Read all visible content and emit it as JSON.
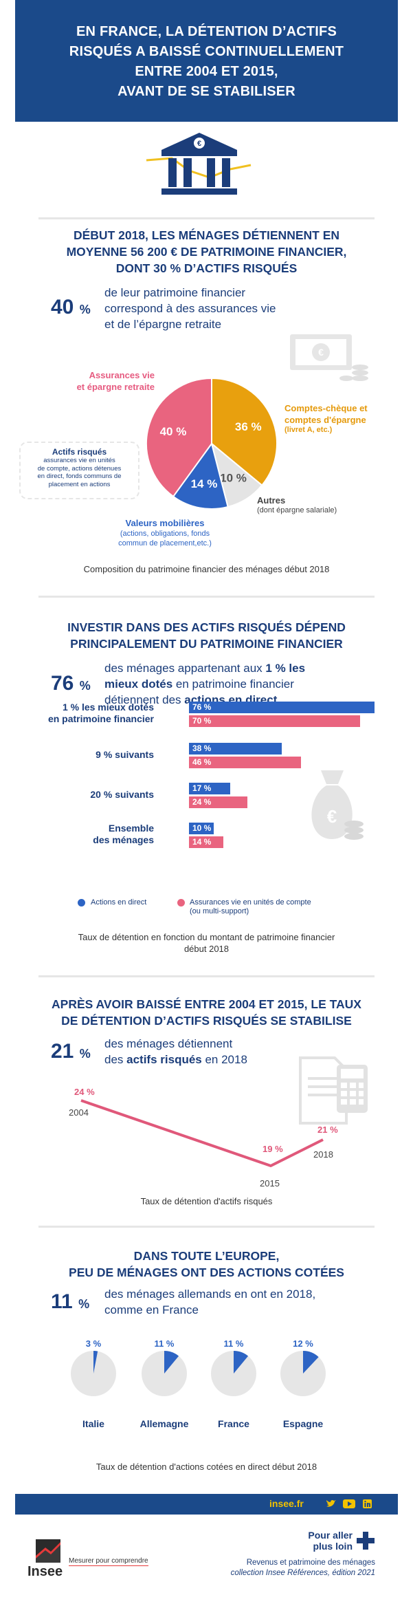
{
  "header": {
    "title_lines": [
      "EN FRANCE, LA DÉTENTION D’ACTIFS",
      "RISQUÉS A BAISSÉ CONTINUELLEMENT",
      "ENTRE 2004 ET 2015,",
      "AVANT DE SE STABILISER"
    ]
  },
  "section1": {
    "title_lines": [
      "DÉBUT 2018, LES MÉNAGES DÉTIENNENT EN",
      "MOYENNE 56 200 € DE PATRIMOINE FINANCIER,",
      "DONT 30 % D’ACTIFS RISQUÉS"
    ],
    "stat_value": "40",
    "stat_unit": "%",
    "stat_text_lines": [
      "de leur patrimoine financier",
      "correspond à des assurances vie",
      "et de l’épargne retraite"
    ],
    "pie_labels": {
      "assurances_line1": "Assurances vie",
      "assurances_line2": "et épargne retraite",
      "comptes_line1": "Comptes-chèque et",
      "comptes_line2": "comptes d'épargne",
      "comptes_sub": "(livret A, etc.)",
      "autres": "Autres",
      "autres_sub": "(dont épargne salariale)",
      "valeurs": "Valeurs mobilières",
      "valeurs_sub1": "(actions, obligations, fonds",
      "valeurs_sub2": "commun de placement,etc.)",
      "risk_title": "Actifs risqués",
      "risk_text_lines": [
        "assurances vie en unités",
        "de compte, actions détenues",
        "en direct, fonds communs de",
        "placement en actions"
      ]
    },
    "caption": "Composition du patrimoine financier des ménages début 2018"
  },
  "chart_data": [
    {
      "type": "pie",
      "title": "Composition du patrimoine financier des ménages début 2018",
      "slices": [
        {
          "label": "Comptes-chèque et comptes d'épargne",
          "value": 36,
          "display": "36 %",
          "color": "#e8a00e"
        },
        {
          "label": "Autres",
          "value": 10,
          "display": "10 %",
          "color": "#e4e4e4"
        },
        {
          "label": "Valeurs mobilières",
          "value": 14,
          "display": "14 %",
          "color": "#2d64c4"
        },
        {
          "label": "Assurances vie et épargne retraite",
          "value": 40,
          "display": "40 %",
          "color": "#e9647f"
        }
      ]
    },
    {
      "type": "bar",
      "title": "Taux de détention en fonction du montant de patrimoine financier début 2018",
      "categories": [
        "1 % les mieux dotés en patrimoine financier",
        "9 % suivants",
        "20 % suivants",
        "Ensemble des ménages"
      ],
      "series": [
        {
          "name": "Actions en direct",
          "values": [
            76,
            38,
            17,
            10
          ],
          "color": "#2d64c4"
        },
        {
          "name": "Assurances vie en unités de compte (ou multi-support)",
          "values": [
            70,
            46,
            24,
            14
          ],
          "color": "#e9647f"
        }
      ]
    },
    {
      "type": "line",
      "title": "Taux de détention d'actifs risqués",
      "x": [
        "2004",
        "2015",
        "2018"
      ],
      "values": [
        24,
        19,
        21
      ],
      "color": "#e0587a"
    },
    {
      "type": "pie",
      "title": "Taux de détention d'actions cotées en direct début 2018",
      "categories": [
        "Italie",
        "Allemagne",
        "France",
        "Espagne"
      ],
      "values": [
        3,
        11,
        11,
        12
      ],
      "color": "#2d64c4"
    }
  ],
  "section2": {
    "title_lines": [
      "INVESTIR DANS DES ACTIFS RISQUÉS DÉPEND",
      "PRINCIPALEMENT DU PATRIMOINE FINANCIER"
    ],
    "stat_value": "76",
    "stat_unit": "%",
    "stat_l1a": "des ménages appartenant aux ",
    "stat_l1b": "1 % les",
    "stat_l2a": "mieux dotés",
    "stat_l2b": " en patrimoine financier",
    "stat_l3a": "détiennent des ",
    "stat_l3b": "actions en direct",
    "cat_lines": [
      [
        "1 % les mieux dotés",
        "en patrimoine financier"
      ],
      [
        "9 % suivants"
      ],
      [
        "20 % suivants"
      ],
      [
        "Ensemble",
        "des ménages"
      ]
    ],
    "bar_labels": [
      [
        "76 %",
        "70 %"
      ],
      [
        "38 %",
        "46 %"
      ],
      [
        "17 %",
        "24 %"
      ],
      [
        "10 %",
        "14 %"
      ]
    ],
    "legend": {
      "blue": "Actions en direct",
      "pink_line1": "Assurances vie en unités de compte",
      "pink_line2": "(ou multi-support)"
    },
    "caption_lines": [
      "Taux de détention en fonction du montant de patrimoine financier",
      "début 2018"
    ]
  },
  "section3": {
    "title_lines": [
      "APRÈS AVOIR BAISSÉ ENTRE 2004 ET 2015, LE TAUX",
      "DE DÉTENTION D’ACTIFS RISQUÉS SE STABILISE"
    ],
    "stat_value": "21",
    "stat_unit": "%",
    "stat_l1": "des ménages détiennent",
    "stat_l2a": "des ",
    "stat_l2b": "actifs risqués",
    "stat_l2c": " en 2018",
    "point_labels": [
      "24 %",
      "19 %",
      "21 %"
    ],
    "year_labels": [
      "2004",
      "2015",
      "2018"
    ],
    "caption": "Taux de détention d'actifs risqués"
  },
  "section4": {
    "title_lines": [
      "DANS TOUTE L’EUROPE,",
      "PEU DE MÉNAGES ONT DES ACTIONS COTÉES"
    ],
    "stat_value": "11",
    "stat_unit": "%",
    "stat_text_lines": [
      "des ménages allemands en ont en 2018,",
      "comme en France"
    ],
    "pct_labels": [
      "3 %",
      "11 %",
      "11 %",
      "12 %"
    ],
    "caption": "Taux de détention d'actions cotées en direct début 2018"
  },
  "footer": {
    "site": "insee.fr",
    "logo_text": "Insee",
    "tagline": "Mesurer pour comprendre",
    "more_line1": "Pour aller",
    "more_line2": "plus loin",
    "ref_line1": "Revenus et patrimoine des ménages",
    "ref_line2": "collection Insee Références, édition 2021"
  },
  "icons": [
    "bank-icon",
    "banknote-coins-icon",
    "money-bag-icon",
    "calculator-document-icon",
    "twitter-icon",
    "youtube-icon",
    "linkedin-icon",
    "plus-icon"
  ],
  "colors": {
    "navy": "#1b4a8a",
    "blue": "#2d64c4",
    "pink": "#e9647f",
    "orange": "#e8a00e",
    "grey": "#e4e4e4"
  }
}
